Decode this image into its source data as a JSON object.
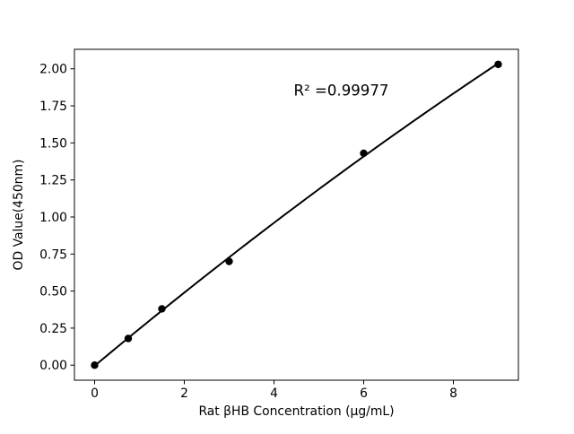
{
  "chart_data": {
    "type": "scatter",
    "title": "",
    "xlabel": "Rat βHB Concentration (μg/mL)",
    "ylabel": "OD Value(450nm)",
    "annotation": "R² =0.99977",
    "annotation_pos": {
      "x": 5.5,
      "y": 1.82
    },
    "x": [
      0,
      0.75,
      1.5,
      3,
      6,
      9
    ],
    "y": [
      0.0,
      0.18,
      0.38,
      0.7,
      1.43,
      2.03
    ],
    "fit": "quadratic",
    "xticks": [
      "0",
      "2",
      "4",
      "6",
      "8"
    ],
    "yticks": [
      "0.00",
      "0.25",
      "0.50",
      "0.75",
      "1.00",
      "1.25",
      "1.50",
      "1.75",
      "2.00"
    ],
    "xlim": [
      -0.45,
      9.45
    ],
    "ylim": [
      -0.1015,
      2.1315
    ],
    "grid": false,
    "legend": "none",
    "marker_color": "#000000",
    "line_color": "#000000",
    "background_color": "#ffffff"
  }
}
